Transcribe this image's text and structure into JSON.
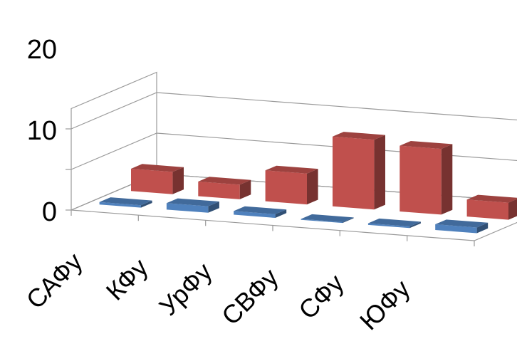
{
  "chart_data": {
    "type": "bar",
    "categories": [
      "САФу",
      "КФу",
      "УрФу",
      "СВФу",
      "СФу",
      "ЮФу"
    ],
    "series": [
      {
        "values": [
          0.6,
          1.6,
          0.9,
          0.2,
          0.4,
          1.4
        ],
        "color": "#4f81bd"
      },
      {
        "values": [
          5.5,
          3.6,
          7.6,
          17.2,
          16.2,
          4.2
        ],
        "color": "#c0504d"
      }
    ],
    "yticks": [
      "0",
      "10",
      "20"
    ],
    "ylim": [
      0,
      20
    ],
    "grid": true,
    "style": "3d-clustered-column-depth"
  }
}
